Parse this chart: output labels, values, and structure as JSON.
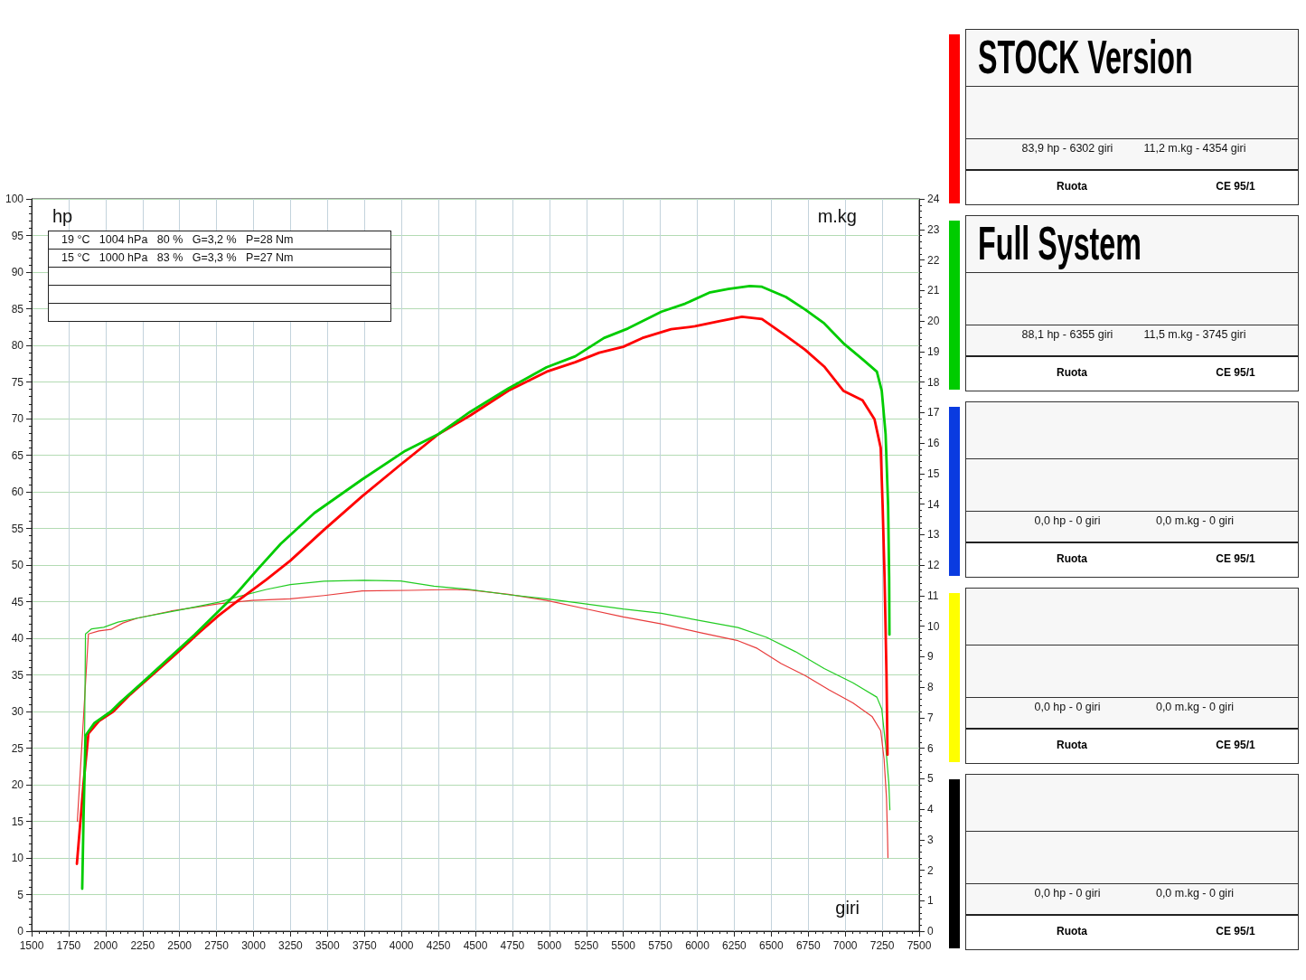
{
  "chart_data": {
    "type": "line",
    "xlabel": "giri",
    "ylabel": "hp",
    "y2label": "m.kg",
    "xlim": [
      1500,
      7500
    ],
    "xticks": [
      1500,
      1750,
      2000,
      2250,
      2500,
      2750,
      3000,
      3250,
      3500,
      3750,
      4000,
      4250,
      4500,
      4750,
      5000,
      5250,
      5500,
      5750,
      6000,
      6250,
      6500,
      6750,
      7000,
      7250,
      7500
    ],
    "ylim": [
      0,
      100
    ],
    "yticks": [
      0,
      5,
      10,
      15,
      20,
      25,
      30,
      35,
      40,
      45,
      50,
      55,
      60,
      65,
      70,
      75,
      80,
      85,
      90,
      95,
      100
    ],
    "y2lim": [
      0,
      24
    ],
    "y2ticks": [
      0,
      1,
      2,
      3,
      4,
      5,
      6,
      7,
      8,
      9,
      10,
      11,
      12,
      13,
      14,
      15,
      16,
      17,
      18,
      19,
      20,
      21,
      22,
      23,
      24
    ],
    "grid": true,
    "legend": "right",
    "series": [
      {
        "name": "STOCK Version",
        "color": "#ff0000",
        "x": [
          1806,
          1851,
          1884,
          1955,
          2052,
          2165,
          2327,
          2473,
          2634,
          2764,
          2893,
          3087,
          3249,
          3476,
          3735,
          3994,
          4252,
          4463,
          4722,
          4981,
          5175,
          5337,
          5499,
          5628,
          5823,
          5984,
          6146,
          6302,
          6437,
          6599,
          6729,
          6858,
          6987,
          7117,
          7198,
          7240,
          7253,
          7266,
          7279,
          7286
        ],
        "values": [
          9.2,
          20.2,
          27.0,
          28.7,
          30.0,
          32.3,
          35.2,
          37.8,
          40.8,
          43.1,
          45.1,
          48.0,
          50.6,
          54.8,
          59.4,
          63.7,
          67.9,
          70.4,
          73.8,
          76.4,
          77.7,
          79.0,
          79.8,
          81.0,
          82.2,
          82.6,
          83.3,
          83.9,
          83.6,
          81.3,
          79.4,
          77.1,
          73.8,
          72.5,
          69.9,
          66.0,
          58.1,
          48.3,
          35.2,
          24.1
        ]
      },
      {
        "name": "Full System",
        "color": "#00cc00",
        "x": [
          1842,
          1851,
          1864,
          1923,
          2036,
          2101,
          2246,
          2440,
          2602,
          2764,
          2893,
          3023,
          3184,
          3411,
          3735,
          4026,
          4252,
          4463,
          4722,
          4981,
          5175,
          5369,
          5531,
          5758,
          5919,
          6081,
          6210,
          6355,
          6437,
          6599,
          6729,
          6858,
          6987,
          7117,
          7214,
          7247,
          7273,
          7290,
          7297,
          7299
        ],
        "values": [
          5.8,
          15.6,
          26.7,
          28.4,
          30.0,
          31.3,
          33.9,
          37.5,
          40.5,
          43.7,
          46.3,
          49.3,
          52.9,
          57.1,
          61.7,
          65.6,
          67.9,
          70.9,
          74.1,
          77.0,
          78.5,
          81.0,
          82.3,
          84.6,
          85.7,
          87.2,
          87.7,
          88.1,
          88.0,
          86.6,
          84.9,
          83.0,
          80.3,
          78.1,
          76.4,
          73.8,
          67.9,
          58.1,
          48.3,
          40.5
        ]
      },
      {
        "color": "#e83c3c",
        "axis": "y2",
        "x": [
          1809,
          1884,
          1955,
          2036,
          2117,
          2214,
          2440,
          2764,
          2990,
          3249,
          3476,
          3735,
          4058,
          4354,
          4463,
          4722,
          4981,
          5240,
          5499,
          5758,
          6016,
          6275,
          6405,
          6567,
          6729,
          6890,
          7052,
          7181,
          7240,
          7263,
          7279,
          7286,
          7289
        ],
        "values": [
          3.6,
          9.74,
          9.84,
          9.89,
          10.1,
          10.26,
          10.49,
          10.73,
          10.84,
          10.89,
          11.0,
          11.15,
          11.17,
          11.2,
          11.18,
          11.04,
          10.84,
          10.57,
          10.3,
          10.07,
          9.79,
          9.52,
          9.27,
          8.77,
          8.38,
          7.91,
          7.48,
          7.04,
          6.57,
          5.63,
          4.37,
          3.12,
          2.41
        ]
      },
      {
        "color": "#22cc22",
        "axis": "y2",
        "x": [
          1858,
          1864,
          1906,
          1987,
          2084,
          2214,
          2505,
          2764,
          2893,
          3087,
          3249,
          3476,
          3745,
          3994,
          4220,
          4463,
          4722,
          4981,
          5240,
          5499,
          5758,
          6016,
          6275,
          6469,
          6664,
          6858,
          7052,
          7214,
          7247,
          7273,
          7295,
          7302
        ],
        "values": [
          6.4,
          9.74,
          9.91,
          9.96,
          10.13,
          10.26,
          10.53,
          10.78,
          10.96,
          11.2,
          11.36,
          11.47,
          11.5,
          11.48,
          11.31,
          11.2,
          11.03,
          10.89,
          10.73,
          10.56,
          10.42,
          10.18,
          9.95,
          9.63,
          9.16,
          8.61,
          8.14,
          7.67,
          7.28,
          6.1,
          4.84,
          3.98
        ]
      }
    ],
    "annotations": [
      "19 °C   1004 hPa   80 %   G=3,2 %   P=28 Nm",
      "15 °C   1000 hPa   83 %   G=3,3 %   P=27 Nm",
      "83,9 hp - 6302 giri",
      "11,2 m.kg - 4354 giri",
      "Ruota",
      "CE 95/1",
      "88,1 hp - 6355 giri",
      "11,5 m.kg - 3745 giri",
      "Ruota",
      "CE 95/1",
      "0,0 hp - 0 giri",
      "0,0 m.kg - 0 giri",
      "Ruota",
      "CE 95/1",
      "0,0 hp - 0 giri",
      "0,0 m.kg - 0 giri",
      "Ruota",
      "CE 95/1",
      "0,0 hp - 0 giri",
      "0,0 m.kg - 0 giri",
      "Ruota",
      "CE 95/1"
    ]
  }
}
